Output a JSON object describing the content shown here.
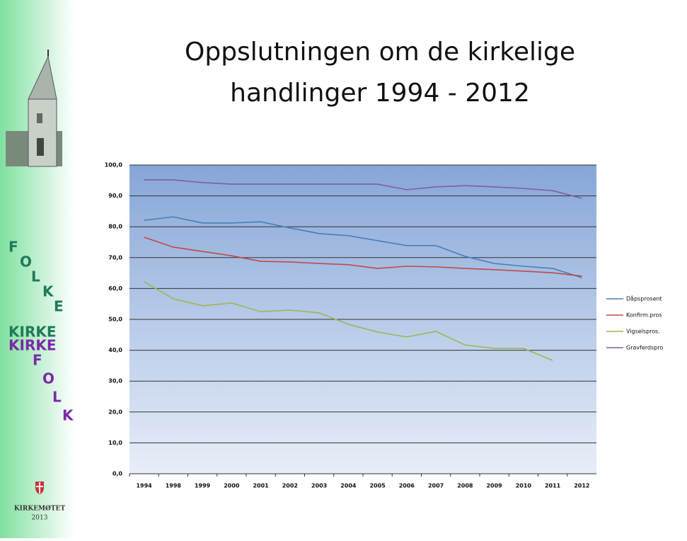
{
  "sidebar": {
    "folke_letters": [
      "F",
      "O",
      "L",
      "K",
      "E"
    ],
    "kirke_green": "KIRKE",
    "kirke_purple": "KIRKE",
    "folk_letters": [
      "F",
      "O",
      "L",
      "K"
    ],
    "footer_name": "KIRKEMØTET",
    "footer_year": "2013"
  },
  "chart_data": {
    "type": "line",
    "title_lines": [
      "Oppslutningen om de kirkelige",
      "handlinger 1994 - 2012"
    ],
    "categories": [
      "1994",
      "1998",
      "1999",
      "2000",
      "2001",
      "2002",
      "2003",
      "2004",
      "2005",
      "2006",
      "2007",
      "2008",
      "2009",
      "2010",
      "2011",
      "2012"
    ],
    "series": [
      {
        "name": "Dåpsprosent",
        "color": "#4a7ebb",
        "values": [
          82.1,
          83.2,
          81.2,
          81.2,
          81.6,
          79.6,
          77.8,
          77.1,
          75.5,
          73.9,
          73.9,
          70.4,
          68.1,
          67.2,
          66.5,
          63.5
        ]
      },
      {
        "name": "Konfirm.pros",
        "color": "#be4b48",
        "values": [
          76.6,
          73.4,
          72.0,
          70.6,
          68.8,
          68.6,
          68.1,
          67.7,
          66.5,
          67.2,
          67.0,
          66.5,
          66.1,
          65.6,
          65.1,
          64.0
        ]
      },
      {
        "name": "Vigselspros.",
        "color": "#98b954",
        "values": [
          62.2,
          56.7,
          54.4,
          55.3,
          52.5,
          53.0,
          52.1,
          48.4,
          45.9,
          44.3,
          46.1,
          41.7,
          40.6,
          40.6,
          36.7,
          null
        ]
      },
      {
        "name": "Gravferdspro",
        "color": "#7d60a0",
        "values": [
          95.2,
          95.2,
          94.3,
          93.8,
          93.8,
          93.8,
          93.8,
          93.8,
          93.8,
          92.0,
          92.9,
          93.3,
          92.9,
          92.4,
          91.7,
          89.2
        ]
      }
    ],
    "ylim": [
      0,
      100
    ],
    "yticks": [
      {
        "value": 0,
        "label": "0,0"
      },
      {
        "value": 10,
        "label": "10,0"
      },
      {
        "value": 20,
        "label": "20,0"
      },
      {
        "value": 30,
        "label": "30,0"
      },
      {
        "value": 40,
        "label": "40,0"
      },
      {
        "value": 50,
        "label": "50,0"
      },
      {
        "value": 60,
        "label": "60,0"
      },
      {
        "value": 70,
        "label": "70,0"
      },
      {
        "value": 80,
        "label": "80,0"
      },
      {
        "value": 90,
        "label": "90,0"
      },
      {
        "value": 100,
        "label": "100,0"
      }
    ],
    "grid": true
  }
}
